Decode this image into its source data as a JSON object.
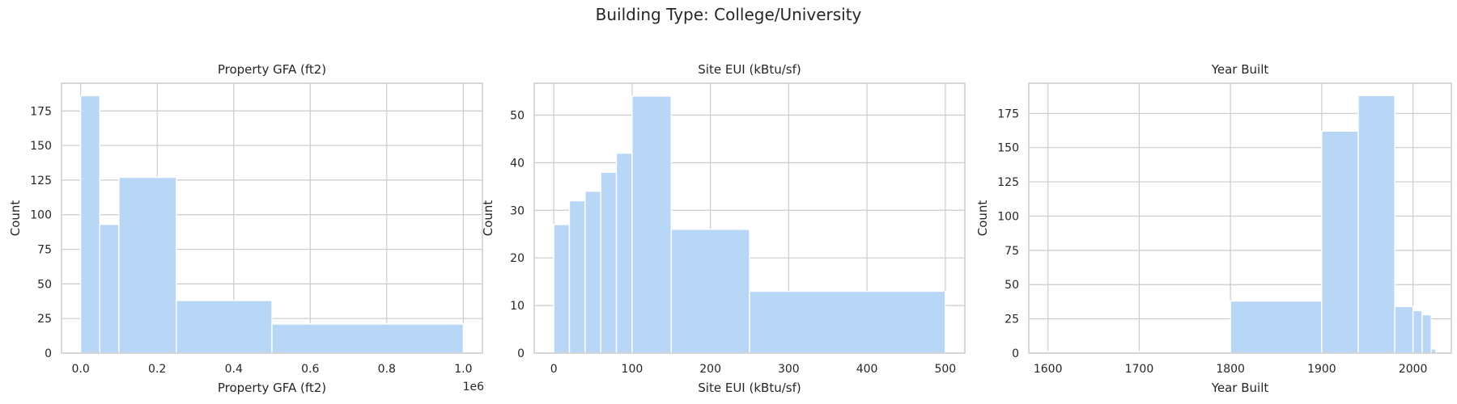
{
  "suptitle": "Building Type: College/University",
  "colors": {
    "bar": "#b8d6f5",
    "grid": "#cccccc",
    "frame": "#cccccc",
    "text": "#262626"
  },
  "chart_data": [
    {
      "type": "bar",
      "title": "Property GFA (ft2)",
      "xlabel": "Property GFA (ft2)",
      "ylabel": "Count",
      "x_offset_label": "1e6",
      "xlim": [
        -0.05,
        1.05
      ],
      "ylim": [
        0,
        195
      ],
      "xticks": [
        0.0,
        0.2,
        0.4,
        0.6,
        0.8,
        1.0
      ],
      "xtick_labels": [
        "0.0",
        "0.2",
        "0.4",
        "0.6",
        "0.8",
        "1.0"
      ],
      "yticks": [
        0,
        25,
        50,
        75,
        100,
        125,
        150,
        175
      ],
      "yticks_labels": [
        "0",
        "25",
        "50",
        "75",
        "100",
        "125",
        "150",
        "175"
      ],
      "bins": [
        {
          "x0": 0.0,
          "x1": 0.05,
          "count": 186
        },
        {
          "x0": 0.05,
          "x1": 0.1,
          "count": 93
        },
        {
          "x0": 0.1,
          "x1": 0.25,
          "count": 127
        },
        {
          "x0": 0.25,
          "x1": 0.5,
          "count": 38
        },
        {
          "x0": 0.5,
          "x1": 1.0,
          "count": 21
        }
      ]
    },
    {
      "type": "bar",
      "title": "Site EUI (kBtu/sf)",
      "xlabel": "Site EUI (kBtu/sf)",
      "ylabel": "Count",
      "x_offset_label": "",
      "xlim": [
        -25,
        525
      ],
      "ylim": [
        0,
        56.7
      ],
      "xticks": [
        0,
        100,
        200,
        300,
        400,
        500
      ],
      "xtick_labels": [
        "0",
        "100",
        "200",
        "300",
        "400",
        "500"
      ],
      "yticks": [
        0,
        10,
        20,
        30,
        40,
        50
      ],
      "yticks_labels": [
        "0",
        "10",
        "20",
        "30",
        "40",
        "50"
      ],
      "bins": [
        {
          "x0": 0,
          "x1": 20,
          "count": 27
        },
        {
          "x0": 20,
          "x1": 40,
          "count": 32
        },
        {
          "x0": 40,
          "x1": 60,
          "count": 34
        },
        {
          "x0": 60,
          "x1": 80,
          "count": 38
        },
        {
          "x0": 80,
          "x1": 100,
          "count": 42
        },
        {
          "x0": 100,
          "x1": 150,
          "count": 54
        },
        {
          "x0": 150,
          "x1": 250,
          "count": 26
        },
        {
          "x0": 250,
          "x1": 500,
          "count": 13
        }
      ]
    },
    {
      "type": "bar",
      "title": "Year Built",
      "xlabel": "Year Built",
      "ylabel": "Count",
      "x_offset_label": "",
      "xlim": [
        1579,
        2042
      ],
      "ylim": [
        0,
        197
      ],
      "xticks": [
        1600,
        1700,
        1800,
        1900,
        2000
      ],
      "xtick_labels": [
        "1600",
        "1700",
        "1800",
        "1900",
        "2000"
      ],
      "yticks": [
        0,
        25,
        50,
        75,
        100,
        125,
        150,
        175
      ],
      "yticks_labels": [
        "0",
        "25",
        "50",
        "75",
        "100",
        "125",
        "150",
        "175"
      ],
      "bins": [
        {
          "x0": 1600,
          "x1": 1800,
          "count": 1
        },
        {
          "x0": 1800,
          "x1": 1900,
          "count": 38
        },
        {
          "x0": 1900,
          "x1": 1940,
          "count": 162
        },
        {
          "x0": 1940,
          "x1": 1980,
          "count": 188
        },
        {
          "x0": 1980,
          "x1": 2000,
          "count": 34
        },
        {
          "x0": 2000,
          "x1": 2010,
          "count": 31
        },
        {
          "x0": 2010,
          "x1": 2020,
          "count": 28
        },
        {
          "x0": 2020,
          "x1": 2025,
          "count": 3
        }
      ]
    }
  ]
}
